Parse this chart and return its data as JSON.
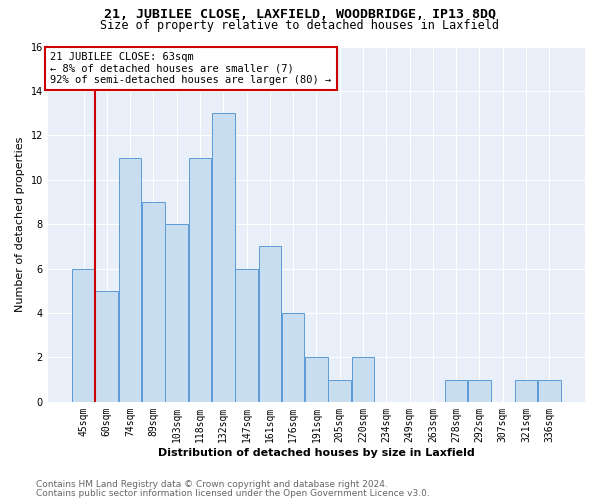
{
  "title1": "21, JUBILEE CLOSE, LAXFIELD, WOODBRIDGE, IP13 8DQ",
  "title2": "Size of property relative to detached houses in Laxfield",
  "xlabel": "Distribution of detached houses by size in Laxfield",
  "ylabel": "Number of detached properties",
  "categories": [
    "45sqm",
    "60sqm",
    "74sqm",
    "89sqm",
    "103sqm",
    "118sqm",
    "132sqm",
    "147sqm",
    "161sqm",
    "176sqm",
    "191sqm",
    "205sqm",
    "220sqm",
    "234sqm",
    "249sqm",
    "263sqm",
    "278sqm",
    "292sqm",
    "307sqm",
    "321sqm",
    "336sqm"
  ],
  "values": [
    6,
    5,
    11,
    9,
    8,
    11,
    13,
    6,
    7,
    4,
    2,
    1,
    2,
    0,
    0,
    0,
    1,
    1,
    0,
    1,
    1
  ],
  "bar_color": "#c9ddf0",
  "bar_edge_color": "#5b9bd5",
  "highlight_bar_index": 1,
  "highlight_line_color": "#cc0000",
  "annotation_line1": "21 JUBILEE CLOSE: 63sqm",
  "annotation_line2": "← 8% of detached houses are smaller (7)",
  "annotation_line3": "92% of semi-detached houses are larger (80) →",
  "annotation_box_edge_color": "#cc0000",
  "ylim": [
    0,
    16
  ],
  "yticks": [
    0,
    2,
    4,
    6,
    8,
    10,
    12,
    14,
    16
  ],
  "background_color": "#e8eff8",
  "grid_color": "#ffffff",
  "footer1": "Contains HM Land Registry data © Crown copyright and database right 2024.",
  "footer2": "Contains public sector information licensed under the Open Government Licence v3.0.",
  "title1_fontsize": 9.5,
  "title2_fontsize": 8.5,
  "xlabel_fontsize": 8,
  "ylabel_fontsize": 8,
  "tick_fontsize": 7,
  "annotation_fontsize": 7.5,
  "footer_fontsize": 6.5
}
